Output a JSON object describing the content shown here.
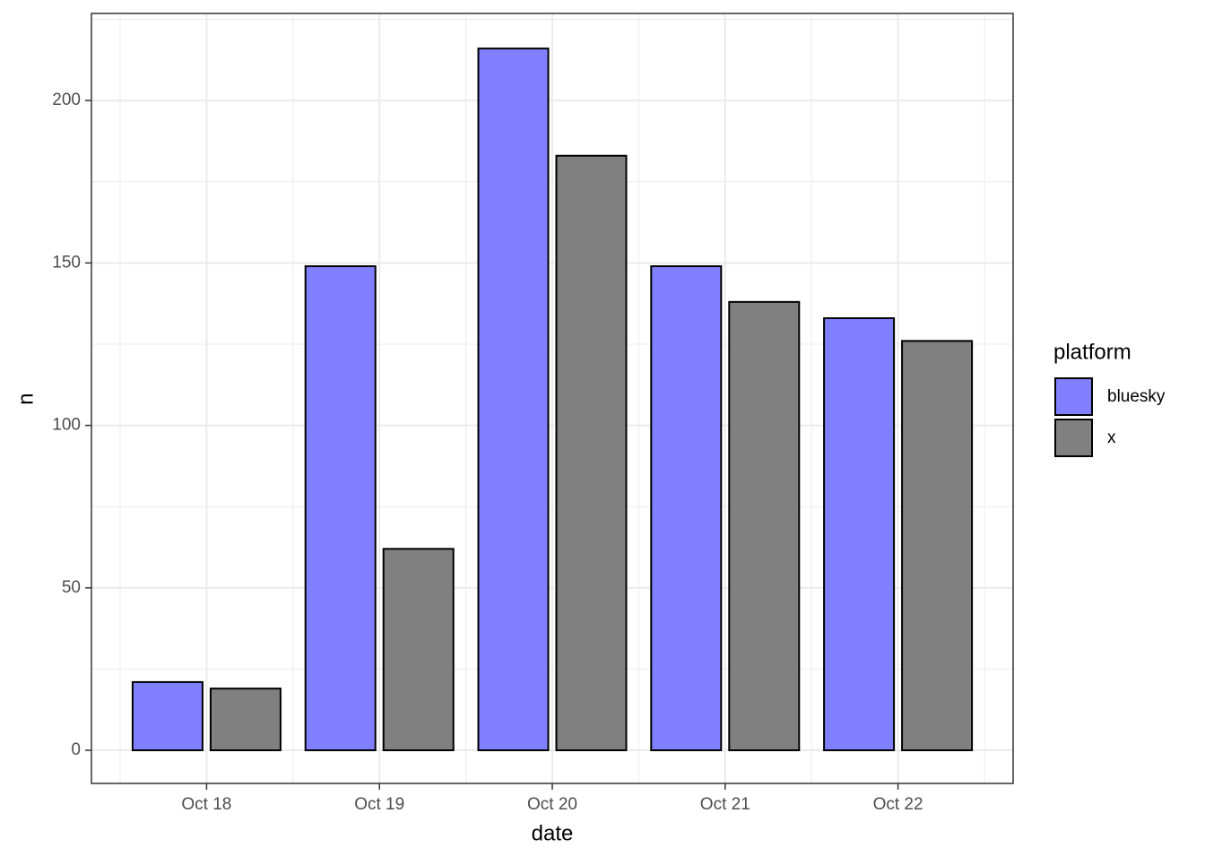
{
  "chart_data": {
    "type": "bar",
    "x_label": "date",
    "y_label": "n",
    "legend_title": "platform",
    "categories": [
      "Oct 18",
      "Oct 19",
      "Oct 20",
      "Oct 21",
      "Oct 22"
    ],
    "series": [
      {
        "name": "bluesky",
        "color": "#8080ff",
        "values": [
          21,
          149,
          216,
          149,
          133
        ]
      },
      {
        "name": "x",
        "color": "#808080",
        "values": [
          19,
          62,
          183,
          138,
          126
        ]
      }
    ],
    "ylim": [
      -10.2,
      226.8
    ],
    "yticks": [
      0,
      50,
      100,
      150,
      200
    ],
    "grid": true
  }
}
